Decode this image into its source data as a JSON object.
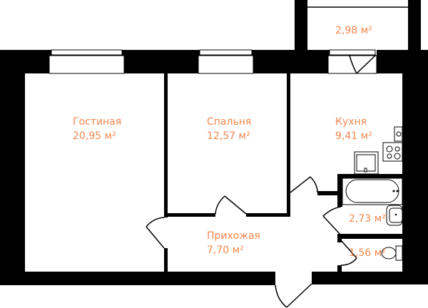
{
  "plan": {
    "label_color": "#f4874f",
    "rooms": [
      {
        "name": "Гостиная",
        "area": "20,95 м²"
      },
      {
        "name": "Спальня",
        "area": "12,57 м²"
      },
      {
        "name": "Кухня",
        "area": "9,41 м²"
      },
      {
        "name": "Прихожая",
        "area": "7,70 м²"
      },
      {
        "name": "",
        "area": "2,98 м²"
      },
      {
        "name": "",
        "area": "2,73 м²"
      },
      {
        "name": "",
        "area": "1,56 м²"
      }
    ]
  }
}
